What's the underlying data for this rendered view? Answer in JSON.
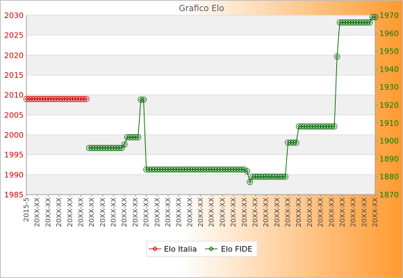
{
  "chart_data": {
    "type": "line",
    "title": "Grafico Elo",
    "left_axis": {
      "min": 1985,
      "max": 2030,
      "ticks": [
        1985,
        1990,
        1995,
        2000,
        2005,
        2010,
        2015,
        2020,
        2025,
        2030
      ],
      "color": "#cc0000"
    },
    "right_axis": {
      "min": 1870,
      "max": 1970,
      "ticks": [
        1870,
        1880,
        1890,
        1900,
        1910,
        1920,
        1930,
        1940,
        1950,
        1960,
        1970
      ],
      "color": "#008000"
    },
    "grid": true,
    "legend": "bottom-center",
    "x_tick_first_label": "2015-5",
    "x_tick_label_pattern": "20XX-XX",
    "x_count": 129,
    "series": [
      {
        "name": "Elo Italia",
        "axis": "left",
        "color": "#cc0000",
        "points": [
          [
            0,
            2009
          ],
          [
            22,
            2009
          ]
        ]
      },
      {
        "name": "Elo FIDE",
        "axis": "right",
        "color": "#006600",
        "points": [
          [
            22,
            null
          ],
          [
            23,
            1896
          ],
          [
            35,
            1896
          ],
          [
            36,
            1898
          ],
          [
            37,
            1902
          ],
          [
            41,
            1902
          ],
          [
            42,
            1923
          ],
          [
            43,
            1923
          ],
          [
            44,
            1884
          ],
          [
            80,
            1884
          ],
          [
            81,
            1883
          ],
          [
            82,
            1877
          ],
          [
            83,
            1880
          ],
          [
            95,
            1880
          ],
          [
            96,
            1899
          ],
          [
            99,
            1899
          ],
          [
            100,
            1908
          ],
          [
            113,
            1908
          ],
          [
            114,
            1947
          ],
          [
            115,
            1966
          ],
          [
            126,
            1966
          ],
          [
            127,
            1969
          ],
          [
            128,
            1969
          ]
        ]
      }
    ]
  }
}
